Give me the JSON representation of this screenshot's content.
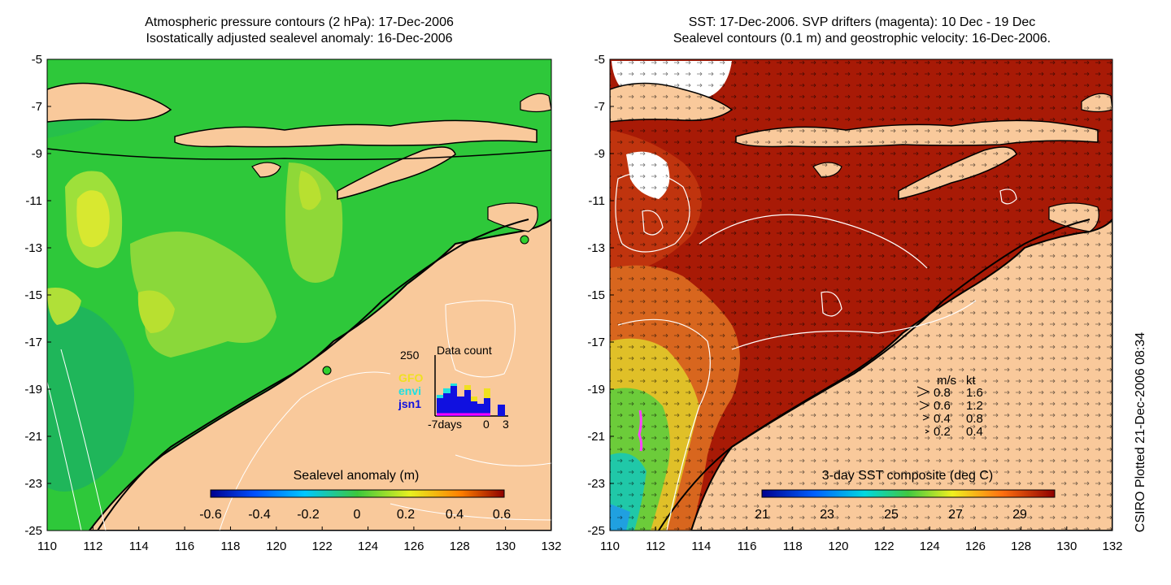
{
  "left_panel": {
    "title_line1": "Atmospheric pressure contours (2 hPa): 17-Dec-2006",
    "title_line2": "Isostatically adjusted sealevel anomaly: 16-Dec-2006",
    "colorbar_label": "Sealevel anomaly (m)",
    "colorbar_ticks": [
      "-0.6",
      "-0.4",
      "-0.2",
      "0",
      "0.2",
      "0.4",
      "0.6"
    ],
    "inset": {
      "title": "Data count",
      "ymax_label": "250",
      "legend": [
        {
          "name": "GFO",
          "color": "#f0e020"
        },
        {
          "name": "envi",
          "color": "#20e0e0"
        },
        {
          "name": "jsn1",
          "color": "#1010e0"
        }
      ],
      "x_labels": [
        "-7days",
        "0",
        "3"
      ]
    }
  },
  "right_panel": {
    "title_line1": "SST: 17-Dec-2006. SVP drifters (magenta): 10 Dec - 19 Dec",
    "title_line2": "Sealevel contours (0.1 m) and geostrophic velocity: 16-Dec-2006.",
    "colorbar_label": "3-day SST composite (deg C)",
    "colorbar_ticks": [
      "21",
      "23",
      "25",
      "27",
      "29"
    ],
    "velocity_legend": {
      "header_ms": "m/s",
      "header_kt": "kt",
      "rows": [
        {
          "ms": "0.8",
          "kt": "1.6"
        },
        {
          "ms": "0.6",
          "kt": "1.2"
        },
        {
          "ms": "0.4",
          "kt": "0.8"
        },
        {
          "ms": "0.2",
          "kt": "0.4"
        }
      ]
    }
  },
  "axes": {
    "y_ticks": [
      "-5",
      "-7",
      "-9",
      "-11",
      "-13",
      "-15",
      "-17",
      "-19",
      "-21",
      "-23",
      "-25"
    ],
    "x_ticks": [
      "110",
      "112",
      "114",
      "116",
      "118",
      "120",
      "122",
      "124",
      "126",
      "128",
      "130",
      "132"
    ]
  },
  "credit": "CSIRO Plotted 21-Dec-2006 08:34",
  "colors": {
    "land": "#f9c99b",
    "sst_warm": "#a81a06",
    "sla_mid": "#39c43a"
  }
}
